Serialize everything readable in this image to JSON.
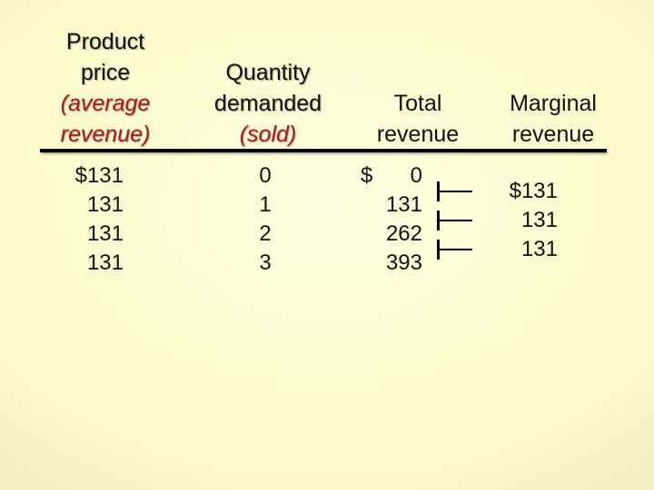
{
  "headers": {
    "price": [
      "Product",
      "price",
      "(average",
      "revenue)"
    ],
    "quantity": [
      "Quantity",
      "demanded",
      "(sold)"
    ],
    "total": [
      "Total",
      "revenue"
    ],
    "marginal": [
      "Marginal",
      "revenue"
    ]
  },
  "rows": {
    "price": [
      "$131",
      "131",
      "131",
      "131"
    ],
    "quantity": [
      "0",
      "1",
      "2",
      "3"
    ],
    "total_currency": "$",
    "total": [
      "0",
      "131",
      "262",
      "393"
    ],
    "marginal": [
      "$131",
      "131",
      "131"
    ]
  },
  "colors": {
    "accent": "#b01818",
    "background": "#fffbcf"
  }
}
